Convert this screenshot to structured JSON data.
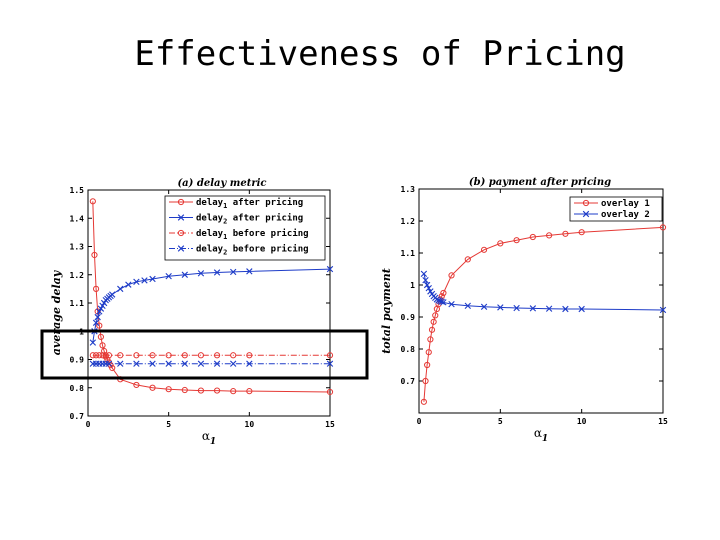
{
  "slide": {
    "title": "Effectiveness of Pricing"
  },
  "chart_data": [
    {
      "type": "line",
      "title": "(a)   delay metric",
      "xlabel": "α1",
      "ylabel": "average delay",
      "xlim": [
        0,
        15
      ],
      "ylim": [
        0.7,
        1.5
      ],
      "xticks": [
        0,
        5,
        10,
        15
      ],
      "yticks": [
        0.7,
        0.8,
        0.9,
        1,
        1.1,
        1.2,
        1.3,
        1.4,
        1.5
      ],
      "legend_position": "top-right",
      "series": [
        {
          "name": "delay1 after pricing",
          "color": "#e53935",
          "marker": "circle",
          "line": "solid",
          "x": [
            0.3,
            0.4,
            0.5,
            0.6,
            0.7,
            0.8,
            0.9,
            1.0,
            1.1,
            1.2,
            1.3,
            1.4,
            1.5,
            2,
            3,
            4,
            5,
            6,
            7,
            8,
            9,
            10,
            15
          ],
          "y": [
            1.46,
            1.27,
            1.15,
            1.07,
            1.02,
            0.98,
            0.95,
            0.93,
            0.91,
            0.9,
            0.89,
            0.88,
            0.87,
            0.83,
            0.81,
            0.8,
            0.795,
            0.792,
            0.79,
            0.79,
            0.788,
            0.788,
            0.785
          ]
        },
        {
          "name": "delay2 after pricing",
          "color": "#1e3cc8",
          "marker": "x",
          "line": "solid",
          "x": [
            0.3,
            0.4,
            0.5,
            0.6,
            0.7,
            0.8,
            0.9,
            1.0,
            1.1,
            1.2,
            1.3,
            1.4,
            1.5,
            2,
            2.5,
            3,
            3.5,
            4,
            5,
            6,
            7,
            8,
            9,
            10,
            15
          ],
          "y": [
            0.96,
            1.0,
            1.03,
            1.05,
            1.07,
            1.08,
            1.09,
            1.1,
            1.11,
            1.115,
            1.12,
            1.125,
            1.13,
            1.15,
            1.165,
            1.175,
            1.18,
            1.185,
            1.195,
            1.2,
            1.205,
            1.208,
            1.21,
            1.212,
            1.22
          ]
        },
        {
          "name": "delay1 before pricing",
          "color": "#e53935",
          "marker": "circle",
          "line": "dash-dot",
          "x": [
            0.3,
            0.5,
            0.7,
            0.9,
            1.1,
            1.3,
            2,
            3,
            4,
            5,
            6,
            7,
            8,
            9,
            10,
            15
          ],
          "y": [
            0.915,
            0.915,
            0.915,
            0.915,
            0.915,
            0.915,
            0.915,
            0.915,
            0.915,
            0.915,
            0.915,
            0.915,
            0.915,
            0.915,
            0.915,
            0.915
          ]
        },
        {
          "name": "delay2 before pricing",
          "color": "#1e3cc8",
          "marker": "x",
          "line": "dash-dot",
          "x": [
            0.3,
            0.5,
            0.7,
            0.9,
            1.1,
            1.3,
            2,
            3,
            4,
            5,
            6,
            7,
            8,
            9,
            10,
            15
          ],
          "y": [
            0.885,
            0.885,
            0.885,
            0.885,
            0.885,
            0.885,
            0.885,
            0.885,
            0.885,
            0.885,
            0.885,
            0.885,
            0.885,
            0.885,
            0.885,
            0.885
          ]
        }
      ]
    },
    {
      "type": "line",
      "title": "(b)   payment after pricing",
      "xlabel": "α1",
      "ylabel": "total payment",
      "xlim": [
        0,
        15
      ],
      "ylim": [
        0.6,
        1.3
      ],
      "xticks": [
        0,
        5,
        10,
        15
      ],
      "yticks": [
        0.7,
        0.8,
        0.9,
        1,
        1.1,
        1.2,
        1.3
      ],
      "legend_position": "top-right",
      "series": [
        {
          "name": "overlay 1",
          "color": "#e53935",
          "marker": "circle",
          "line": "solid",
          "x": [
            0.3,
            0.4,
            0.5,
            0.6,
            0.7,
            0.8,
            0.9,
            1.0,
            1.1,
            1.2,
            1.3,
            1.4,
            1.5,
            2,
            3,
            4,
            5,
            6,
            7,
            8,
            9,
            10,
            15
          ],
          "y": [
            0.635,
            0.7,
            0.75,
            0.79,
            0.83,
            0.86,
            0.885,
            0.905,
            0.925,
            0.94,
            0.955,
            0.965,
            0.975,
            1.03,
            1.08,
            1.11,
            1.13,
            1.14,
            1.15,
            1.155,
            1.16,
            1.165,
            1.18
          ]
        },
        {
          "name": "overlay 2",
          "color": "#1e3cc8",
          "marker": "x",
          "line": "solid",
          "x": [
            0.3,
            0.4,
            0.5,
            0.6,
            0.7,
            0.8,
            0.9,
            1.0,
            1.1,
            1.2,
            1.3,
            1.4,
            1.5,
            2,
            3,
            4,
            5,
            6,
            7,
            8,
            9,
            10,
            15
          ],
          "y": [
            1.035,
            1.015,
            1.0,
            0.99,
            0.98,
            0.972,
            0.965,
            0.96,
            0.955,
            0.952,
            0.95,
            0.948,
            0.946,
            0.94,
            0.935,
            0.932,
            0.93,
            0.928,
            0.927,
            0.926,
            0.925,
            0.925,
            0.922
          ]
        }
      ]
    }
  ]
}
